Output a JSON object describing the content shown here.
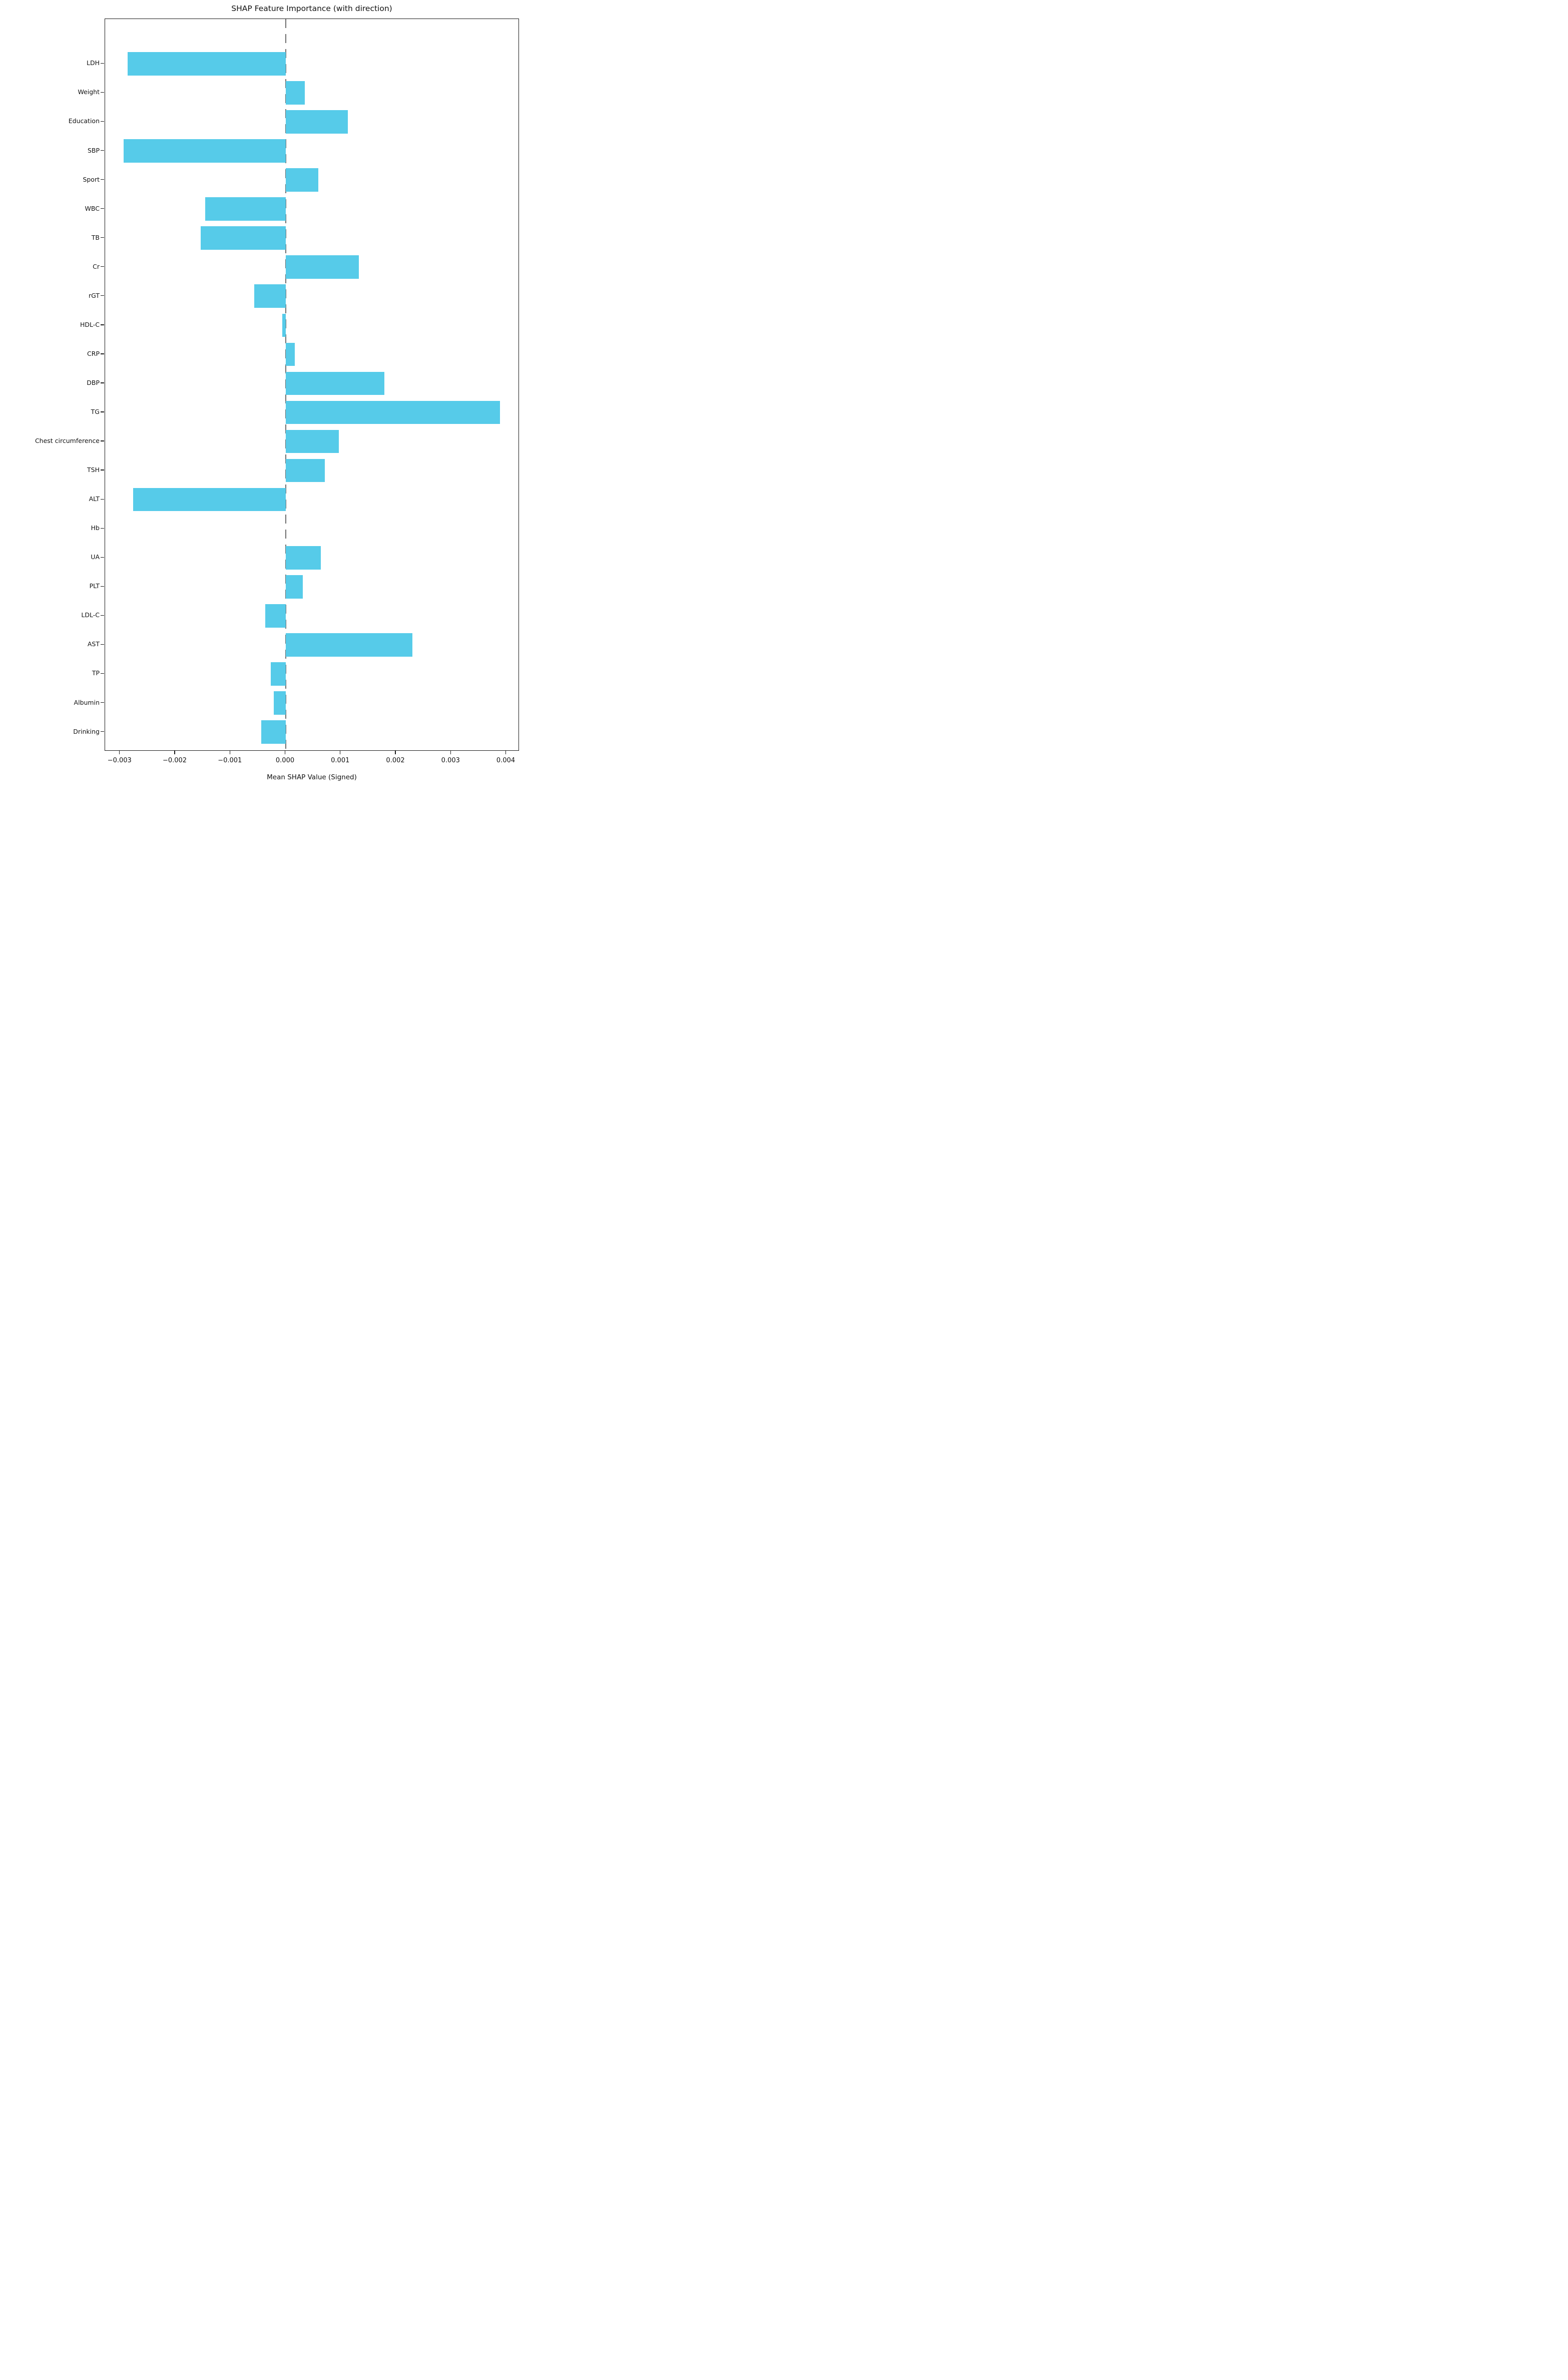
{
  "chart_data": {
    "type": "bar",
    "orientation": "horizontal",
    "title": "SHAP Feature Importance (with direction)",
    "xlabel": "Mean SHAP Value (Signed)",
    "ylabel": "",
    "grid": false,
    "legend": null,
    "bar_color": "#56cbe9",
    "zero_line_color": "#6e6e6e",
    "xlim": [
      -0.00327,
      0.00424
    ],
    "categories": [
      "LDH",
      "Weight",
      "Education",
      "SBP",
      "Sport",
      "WBC",
      "TB",
      "Cr",
      "rGT",
      "HDL-C",
      "CRP",
      "DBP",
      "TG",
      "Chest circumference",
      "TSH",
      "ALT",
      "Hb",
      "UA",
      "PLT",
      "LDL-C",
      "AST",
      "TP",
      "Albumin",
      "Drinking"
    ],
    "values": [
      -0.00286,
      0.00035,
      0.00113,
      -0.00293,
      0.00059,
      -0.00146,
      -0.00154,
      0.00133,
      -0.00057,
      -6e-05,
      0.00017,
      0.00179,
      0.00389,
      0.00097,
      0.00071,
      -0.00276,
      0.0,
      0.00064,
      0.00031,
      -0.00037,
      0.0023,
      -0.00027,
      -0.00021,
      -0.00044
    ],
    "xticks": [
      {
        "label": "−0.003",
        "value": -0.003
      },
      {
        "label": "−0.002",
        "value": -0.002
      },
      {
        "label": "−0.001",
        "value": -0.001
      },
      {
        "label": "0.000",
        "value": 0.0
      },
      {
        "label": "0.001",
        "value": 0.001
      },
      {
        "label": "0.002",
        "value": 0.002
      },
      {
        "label": "0.003",
        "value": 0.003
      },
      {
        "label": "0.004",
        "value": 0.004
      }
    ]
  }
}
